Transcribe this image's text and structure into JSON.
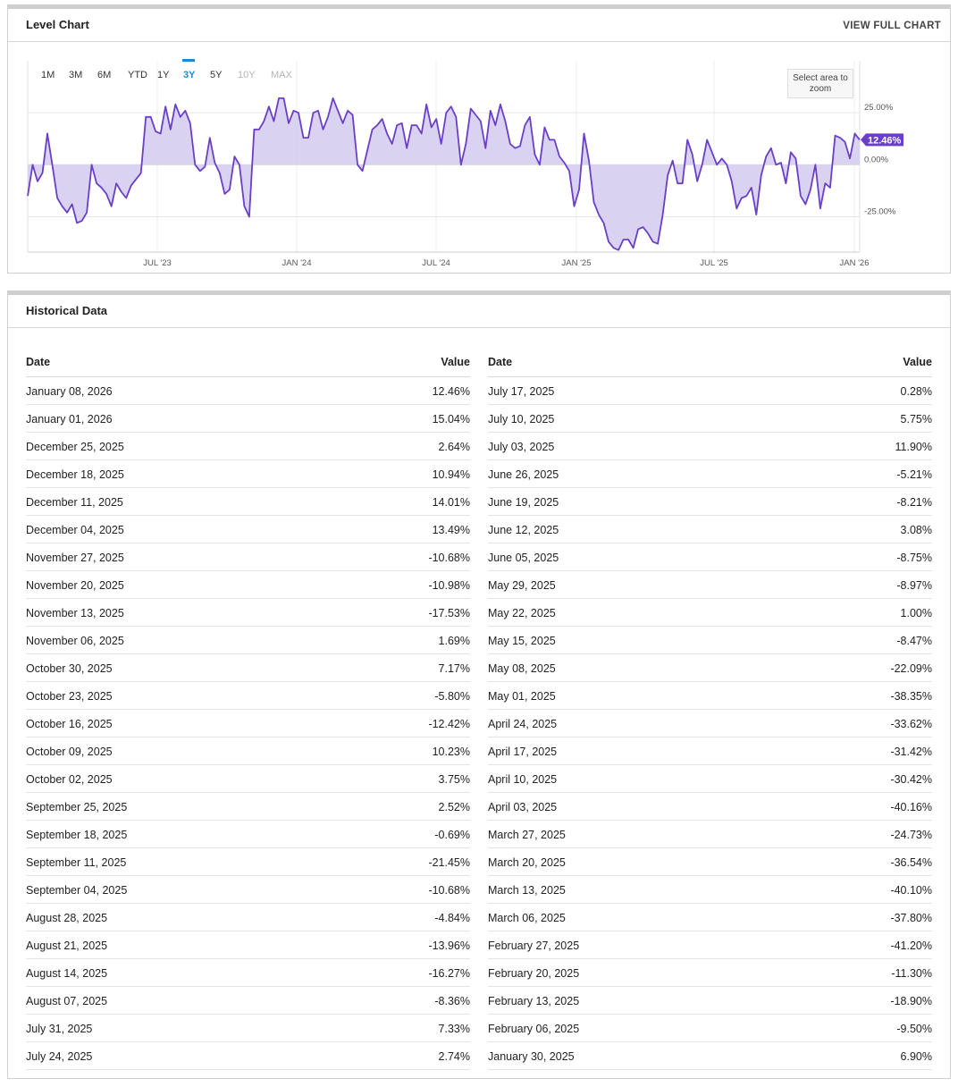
{
  "chart_panel": {
    "title": "Level Chart",
    "view_full": "VIEW FULL CHART",
    "zoom_hint": "Select area to zoom",
    "ranges": [
      "1M",
      "3M",
      "6M",
      "YTD",
      "1Y",
      "3Y",
      "5Y",
      "10Y",
      "MAX"
    ],
    "active_range": "3Y",
    "disabled_ranges": [
      "10Y",
      "MAX"
    ]
  },
  "chart_data": {
    "type": "area",
    "x_ticks": [
      "JUL '23",
      "JAN '24",
      "JUL '24",
      "JAN '25",
      "JUL '25",
      "JAN '26"
    ],
    "y_ticks": [
      "25.00%",
      "0.00%",
      "-25.00%"
    ],
    "y_tick_values": [
      25,
      0,
      -25
    ],
    "ylim": [
      -42,
      50
    ],
    "current_value_label": "12.46%",
    "colors": {
      "line": "#6a3fc8",
      "fill": "#d6cdf0",
      "label_bg": "#6a3fc8"
    },
    "series": [
      {
        "values": [
          -15,
          0,
          -8,
          -4,
          15,
          0,
          -16,
          -20,
          -23,
          -19,
          -28,
          -27,
          -23,
          0,
          -9,
          -11,
          -14,
          -20,
          -9,
          -13,
          -16,
          -10,
          -7,
          -4,
          23,
          23,
          16,
          15,
          28,
          17,
          29,
          23,
          26,
          20,
          0,
          -3,
          -1,
          13,
          1,
          -4,
          -14,
          -12,
          4,
          0,
          -20,
          -25,
          17,
          17,
          21,
          28,
          21,
          32,
          32,
          20,
          26,
          25,
          13,
          13,
          25,
          26,
          17,
          23,
          32,
          26,
          20,
          26,
          24,
          0,
          -3,
          7,
          17,
          19,
          22,
          15,
          10,
          19,
          20,
          8,
          19,
          19,
          15,
          29,
          18,
          22,
          10,
          25,
          28,
          23,
          0,
          10,
          27,
          24,
          21,
          8,
          26,
          19,
          29,
          21,
          10,
          8,
          9,
          19,
          23,
          5,
          0,
          18,
          12,
          12,
          4,
          1,
          -3,
          -20,
          -12,
          15,
          2,
          -18,
          -24,
          -28,
          -37,
          -40,
          -41,
          -36,
          -36,
          -40,
          -31,
          -30,
          -33,
          -37,
          -38,
          -24,
          -5,
          2,
          -9,
          -9,
          12,
          5,
          -8,
          0,
          12,
          6,
          0,
          3,
          0,
          -8,
          -21,
          -16,
          -15,
          -11,
          -24,
          -5,
          4,
          8,
          0,
          1,
          -9,
          6,
          3,
          -15,
          -19,
          -12,
          0,
          -21,
          -9,
          -11,
          14,
          13,
          11,
          3,
          15,
          12
        ],
        "highlight": "January 08, 2026"
      }
    ]
  },
  "history_panel": {
    "title": "Historical Data",
    "headers": {
      "date": "Date",
      "value": "Value"
    },
    "left_rows": [
      {
        "date": "January 08, 2026",
        "value": "12.46%"
      },
      {
        "date": "January 01, 2026",
        "value": "15.04%"
      },
      {
        "date": "December 25, 2025",
        "value": "2.64%"
      },
      {
        "date": "December 18, 2025",
        "value": "10.94%"
      },
      {
        "date": "December 11, 2025",
        "value": "14.01%"
      },
      {
        "date": "December 04, 2025",
        "value": "13.49%"
      },
      {
        "date": "November 27, 2025",
        "value": "-10.68%"
      },
      {
        "date": "November 20, 2025",
        "value": "-10.98%"
      },
      {
        "date": "November 13, 2025",
        "value": "-17.53%"
      },
      {
        "date": "November 06, 2025",
        "value": "1.69%"
      },
      {
        "date": "October 30, 2025",
        "value": "7.17%"
      },
      {
        "date": "October 23, 2025",
        "value": "-5.80%"
      },
      {
        "date": "October 16, 2025",
        "value": "-12.42%"
      },
      {
        "date": "October 09, 2025",
        "value": "10.23%"
      },
      {
        "date": "October 02, 2025",
        "value": "3.75%"
      },
      {
        "date": "September 25, 2025",
        "value": "2.52%"
      },
      {
        "date": "September 18, 2025",
        "value": "-0.69%"
      },
      {
        "date": "September 11, 2025",
        "value": "-21.45%"
      },
      {
        "date": "September 04, 2025",
        "value": "-10.68%"
      },
      {
        "date": "August 28, 2025",
        "value": "-4.84%"
      },
      {
        "date": "August 21, 2025",
        "value": "-13.96%"
      },
      {
        "date": "August 14, 2025",
        "value": "-16.27%"
      },
      {
        "date": "August 07, 2025",
        "value": "-8.36%"
      },
      {
        "date": "July 31, 2025",
        "value": "7.33%"
      },
      {
        "date": "July 24, 2025",
        "value": "2.74%"
      }
    ],
    "right_rows": [
      {
        "date": "July 17, 2025",
        "value": "0.28%"
      },
      {
        "date": "July 10, 2025",
        "value": "5.75%"
      },
      {
        "date": "July 03, 2025",
        "value": "11.90%"
      },
      {
        "date": "June 26, 2025",
        "value": "-5.21%"
      },
      {
        "date": "June 19, 2025",
        "value": "-8.21%"
      },
      {
        "date": "June 12, 2025",
        "value": "3.08%"
      },
      {
        "date": "June 05, 2025",
        "value": "-8.75%"
      },
      {
        "date": "May 29, 2025",
        "value": "-8.97%"
      },
      {
        "date": "May 22, 2025",
        "value": "1.00%"
      },
      {
        "date": "May 15, 2025",
        "value": "-8.47%"
      },
      {
        "date": "May 08, 2025",
        "value": "-22.09%"
      },
      {
        "date": "May 01, 2025",
        "value": "-38.35%"
      },
      {
        "date": "April 24, 2025",
        "value": "-33.62%"
      },
      {
        "date": "April 17, 2025",
        "value": "-31.42%"
      },
      {
        "date": "April 10, 2025",
        "value": "-30.42%"
      },
      {
        "date": "April 03, 2025",
        "value": "-40.16%"
      },
      {
        "date": "March 27, 2025",
        "value": "-24.73%"
      },
      {
        "date": "March 20, 2025",
        "value": "-36.54%"
      },
      {
        "date": "March 13, 2025",
        "value": "-40.10%"
      },
      {
        "date": "March 06, 2025",
        "value": "-37.80%"
      },
      {
        "date": "February 27, 2025",
        "value": "-41.20%"
      },
      {
        "date": "February 20, 2025",
        "value": "-11.30%"
      },
      {
        "date": "February 13, 2025",
        "value": "-18.90%"
      },
      {
        "date": "February 06, 2025",
        "value": "-9.50%"
      },
      {
        "date": "January 30, 2025",
        "value": "6.90%"
      }
    ]
  }
}
